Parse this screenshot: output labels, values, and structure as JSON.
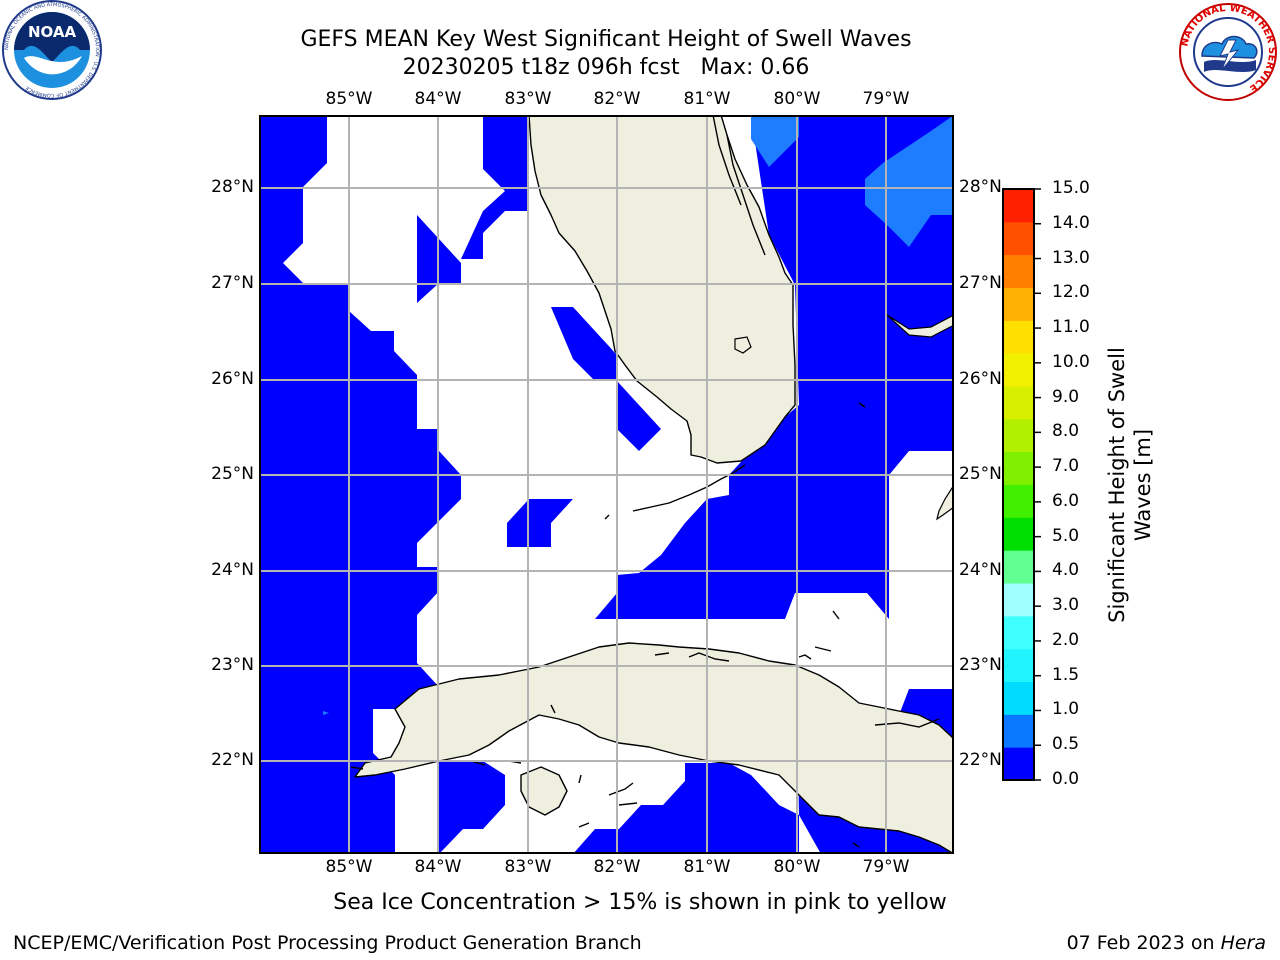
{
  "header": {
    "title_line1": "GEFS MEAN Key West Significant Height of Swell Waves",
    "title_line2": "20230205 t18z 096h fcst   Max: 0.66"
  },
  "logos": {
    "left_name": "NOAA",
    "left_ring_text": "NATIONAL OCEANIC AND ATMOSPHERIC ADMINISTRATION · U.S. DEPARTMENT OF COMMERCE",
    "right_ring_text": "NATIONAL WEATHER SERVICE"
  },
  "map": {
    "lon_labels": [
      "85°W",
      "84°W",
      "83°W",
      "82°W",
      "81°W",
      "80°W",
      "79°W"
    ],
    "lat_labels": [
      "28°N",
      "27°N",
      "26°N",
      "25°N",
      "24°N",
      "23°N",
      "22°N"
    ],
    "extent": {
      "lon_min": -86.0,
      "lon_max": -78.25,
      "lat_min": 21.0,
      "lat_max": 28.75
    },
    "colors": {
      "swell_0_05": "#0000ff",
      "swell_05_1": "#1e7cff",
      "land": "#efefe0",
      "grid": "#b4b4b4",
      "coast": "#000000"
    }
  },
  "colorbar": {
    "label": "Significant Height of Swell Waves [m]",
    "label_line1": "Significant Height of Swell",
    "label_line2": "Waves [m]",
    "ticks": [
      "15.0",
      "14.0",
      "13.0",
      "12.0",
      "11.0",
      "10.0",
      "9.0",
      "8.0",
      "7.0",
      "6.0",
      "5.0",
      "4.0",
      "3.0",
      "2.0",
      "1.5",
      "1.0",
      "0.5",
      "0.0"
    ],
    "colors_bottom_to_top": [
      "#0000ff",
      "#0a78ff",
      "#00dcff",
      "#20f5ff",
      "#40ffff",
      "#a0ffff",
      "#60ff90",
      "#00e000",
      "#40f000",
      "#80f000",
      "#b0f000",
      "#d8f000",
      "#f0f000",
      "#ffe000",
      "#ffb000",
      "#ff8000",
      "#ff5000",
      "#ff2000"
    ]
  },
  "footer": {
    "sea_ice_note": "Sea Ice Concentration > 15% is shown in pink to yellow",
    "credit": "NCEP/EMC/Verification Post Processing Product Generation Branch",
    "date": "07 Feb 2023 on ",
    "machine": "Hera"
  }
}
